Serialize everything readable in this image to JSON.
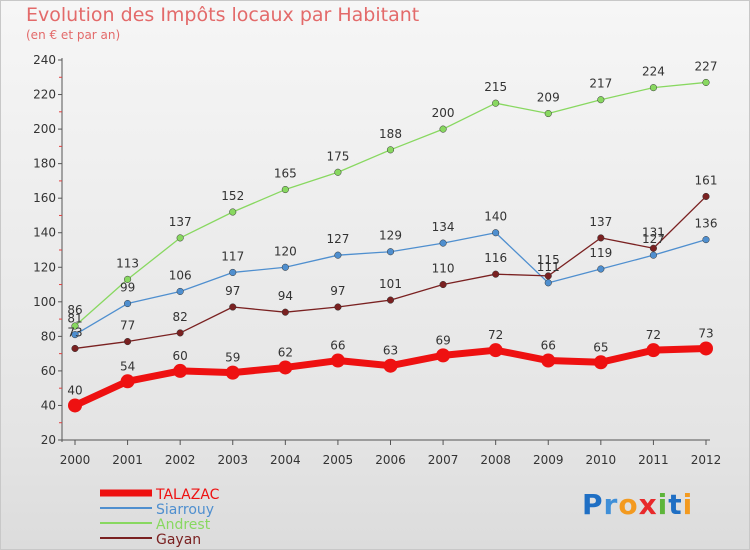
{
  "header": {
    "title": "Evolution des Impôts locaux par Habitant",
    "subtitle": "(en € et par an)"
  },
  "logo": {
    "text": "Proxiti",
    "letters": [
      {
        "ch": "P",
        "color": "#1f6fc4"
      },
      {
        "ch": "r",
        "color": "#3f8fd8"
      },
      {
        "ch": "o",
        "color": "#f39a1f"
      },
      {
        "ch": "x",
        "color": "#e8292b"
      },
      {
        "ch": "i",
        "color": "#5db53a"
      },
      {
        "ch": "t",
        "color": "#1f6fc4"
      },
      {
        "ch": "i",
        "color": "#f39a1f"
      }
    ]
  },
  "chart_data": {
    "type": "line",
    "title": "Evolution des Impôts locaux par Habitant",
    "subtitle": "(en € et par an)",
    "x": [
      "2000",
      "2001",
      "2002",
      "2003",
      "2004",
      "2005",
      "2006",
      "2007",
      "2008",
      "2009",
      "2010",
      "2011",
      "2012"
    ],
    "ylim": [
      20,
      240
    ],
    "yticks": [
      20,
      40,
      60,
      80,
      100,
      120,
      140,
      160,
      180,
      200,
      220,
      240
    ],
    "grid": false,
    "legend_position": "bottom-left",
    "series": [
      {
        "name": "TALAZAC",
        "color": "#ee1111",
        "values": [
          40,
          54,
          60,
          59,
          62,
          66,
          63,
          69,
          72,
          66,
          65,
          72,
          73
        ]
      },
      {
        "name": "Siarrouy",
        "color": "#4f8fcf",
        "values": [
          81,
          99,
          106,
          117,
          120,
          127,
          129,
          134,
          140,
          111,
          119,
          127,
          136
        ]
      },
      {
        "name": "Andrest",
        "color": "#88d860",
        "values": [
          86,
          113,
          137,
          152,
          165,
          175,
          188,
          200,
          215,
          209,
          217,
          224,
          227
        ]
      },
      {
        "name": "Gayan",
        "color": "#7a2121",
        "values": [
          73,
          77,
          82,
          97,
          94,
          97,
          101,
          110,
          116,
          115,
          137,
          131,
          161
        ]
      }
    ],
    "labels": {
      "TALAZAC": [
        "40",
        "54",
        "60",
        "59",
        "62",
        "66",
        "63",
        "69",
        "72",
        "66",
        "65",
        "72",
        "73"
      ],
      "Siarrouy": [
        "81",
        "99",
        "106",
        "117",
        "120",
        "127",
        "129",
        "134",
        "140",
        "111",
        "119",
        "127",
        "136"
      ],
      "Andrest": [
        "86",
        "113",
        "137",
        "152",
        "165",
        "175",
        "188",
        "200",
        "215",
        "209",
        "217",
        "224",
        "227"
      ],
      "Gayan": [
        "73",
        "77",
        "82",
        "97",
        "94",
        "97",
        "101",
        "110",
        "116",
        "115",
        "137",
        "131",
        "161"
      ]
    }
  }
}
